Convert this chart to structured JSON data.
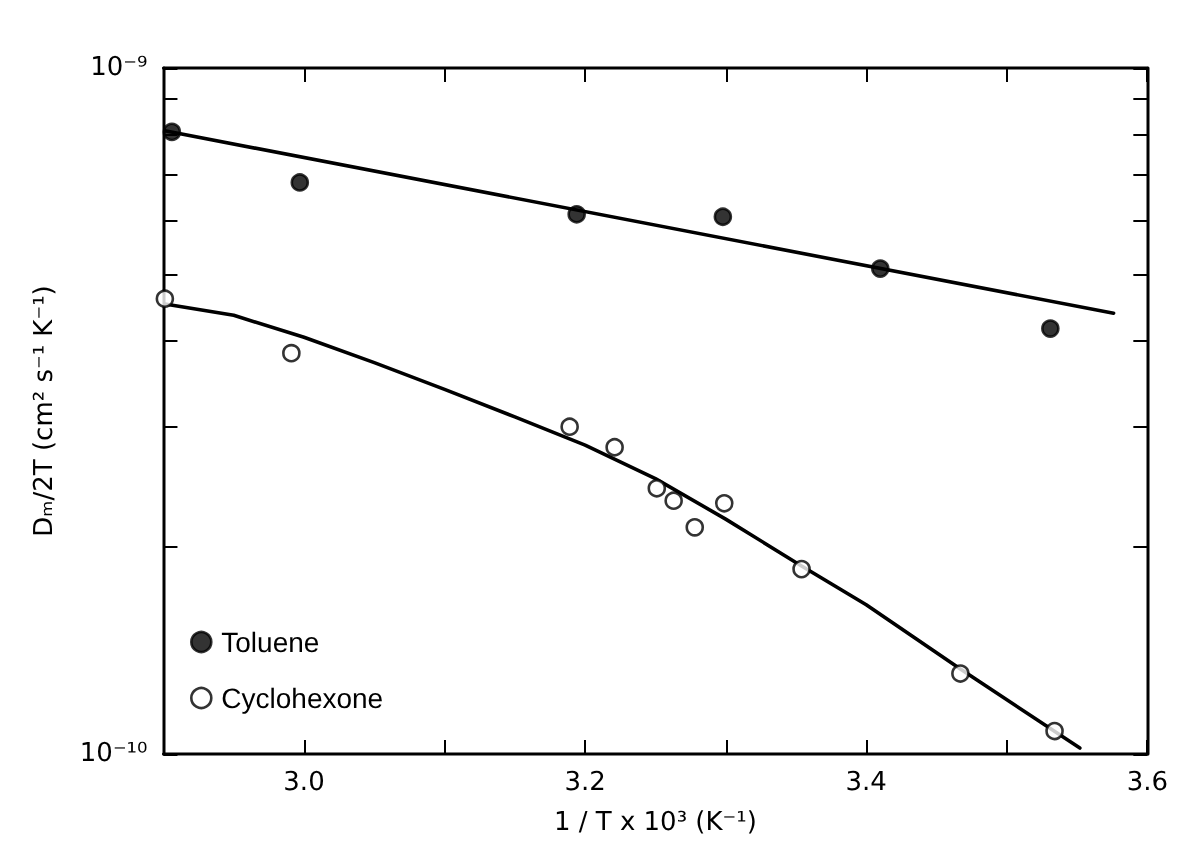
{
  "chart_data": {
    "type": "scatter",
    "xlabel": "1 / T x 10³ (K⁻¹)",
    "ylabel": "Dₘ/2T (cm² s⁻¹ K⁻¹)",
    "xlim": [
      2.9,
      3.6
    ],
    "xticks": [
      {
        "value": 3.0,
        "label": "3.0"
      },
      {
        "value": 3.1,
        "label": null
      },
      {
        "value": 3.2,
        "label": "3.2"
      },
      {
        "value": 3.3,
        "label": null
      },
      {
        "value": 3.4,
        "label": "3.4"
      },
      {
        "value": 3.5,
        "label": null
      },
      {
        "value": 3.6,
        "label": "3.6"
      }
    ],
    "ylim": [
      1e-10,
      1e-09
    ],
    "yticks": [
      {
        "value": 1e-10,
        "label": "10⁻¹⁰"
      },
      {
        "value": 2e-10,
        "label": null
      },
      {
        "value": 3e-10,
        "label": null
      },
      {
        "value": 4e-10,
        "label": null
      },
      {
        "value": 5e-10,
        "label": null
      },
      {
        "value": 6e-10,
        "label": null
      },
      {
        "value": 7e-10,
        "label": null
      },
      {
        "value": 8e-10,
        "label": null
      },
      {
        "value": 9e-10,
        "label": null
      },
      {
        "value": 1e-09,
        "label": "10⁻⁹"
      }
    ],
    "log": "y",
    "legend": "bottom left",
    "series": [
      {
        "name": "Toluene",
        "marker": "circle",
        "color": "#000000",
        "x": [
          2.906,
          2.997,
          3.194,
          3.298,
          3.41,
          3.531
        ],
        "values": [
          8.07e-10,
          6.81e-10,
          6.12e-10,
          6.07e-10,
          5.1e-10,
          4.17e-10
        ]
      },
      {
        "name": "Cyclohexone",
        "marker": "circle",
        "color": "#ffffff",
        "x": [
          2.901,
          2.991,
          3.189,
          3.221,
          3.251,
          3.263,
          3.278,
          3.299,
          3.354,
          3.467,
          3.534
        ],
        "values": [
          4.61e-10,
          3.84e-10,
          3e-10,
          2.8e-10,
          2.44e-10,
          2.34e-10,
          2.14e-10,
          2.32e-10,
          1.86e-10,
          1.31e-10,
          1.08e-10
        ]
      },
      {
        "type": "line",
        "marker": "none",
        "line_style": "solid",
        "color": "#000000",
        "x": [
          2.901,
          3.576
        ],
        "values": [
          8.1e-10,
          4.39e-10
        ]
      },
      {
        "type": "line",
        "marker": "none",
        "line_style": "solid",
        "color": "#000000",
        "x": [
          2.901,
          2.95,
          3.0,
          3.05,
          3.1,
          3.15,
          3.2,
          3.25,
          3.3,
          3.354,
          3.4,
          3.467,
          3.552
        ],
        "values": [
          4.53e-10,
          4.36e-10,
          4.05e-10,
          3.72e-10,
          3.4e-10,
          3.1e-10,
          2.82e-10,
          2.52e-10,
          2.2e-10,
          1.88e-10,
          1.65e-10,
          1.33e-10,
          1.02e-10
        ]
      }
    ]
  }
}
